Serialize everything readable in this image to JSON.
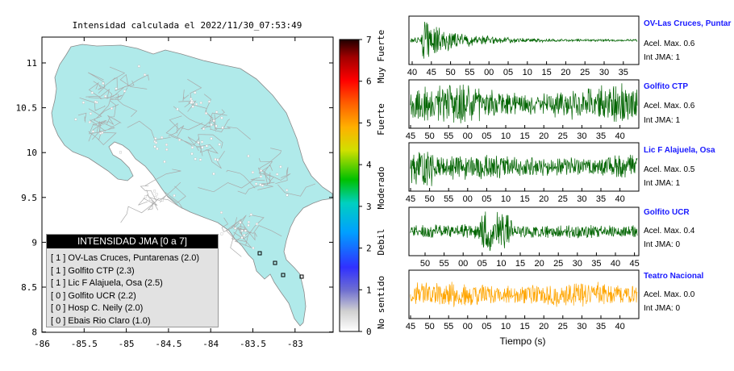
{
  "map": {
    "title": "Intensidad calculada el 2022/11/30_07:53:49",
    "x_ticks": [
      "-86",
      "-85.5",
      "-85",
      "-84.5",
      "-84",
      "-83.5",
      "-83"
    ],
    "y_ticks": [
      "11",
      "10.5",
      "10",
      "9.5",
      "9",
      "8.5",
      "8"
    ],
    "land_color": "#b0eaea",
    "road_color": "#aaaaaa",
    "border_color": "#8a8a8a"
  },
  "colorbar": {
    "ticks": [
      "0",
      "1",
      "2",
      "3",
      "4",
      "5",
      "6",
      "7"
    ],
    "labels": [
      "No sentido",
      "Debil",
      "Moderado",
      "Fuerte",
      "Muy Fuerte"
    ]
  },
  "legend": {
    "title": "INTENSIDAD JMA [0 a 7]",
    "rows": [
      "[ 1 ]  OV-Las Cruces, Puntarenas (2.0)",
      "[ 1 ]  Golfito CTP (2.3)",
      "[ 1 ]  Lic F Alajuela, Osa (2.5)",
      "[ 0 ]  Golfito UCR (2.2)",
      "[ 0 ]  Hosp C. Neily (2.0)",
      "[ 0 ]  Ebais Rio Claro (1.0)"
    ]
  },
  "waveforms": [
    {
      "name": "OV-Las Cruces, Puntar",
      "accel": "Acel. Max. 0.6",
      "intensity": "Int JMA: 1",
      "color": "#006400",
      "ticks": [
        "40",
        "45",
        "50",
        "55",
        "00",
        "05",
        "10",
        "15",
        "20",
        "25",
        "30",
        "35"
      ]
    },
    {
      "name": "Golfito CTP",
      "accel": "Acel. Max. 0.6",
      "intensity": "Int JMA: 1",
      "color": "#006400",
      "ticks": [
        "45",
        "50",
        "55",
        "00",
        "05",
        "10",
        "15",
        "20",
        "25",
        "30",
        "35",
        "40"
      ]
    },
    {
      "name": "Lic F Alajuela, Osa",
      "accel": "Acel. Max. 0.5",
      "intensity": "Int JMA: 1",
      "color": "#006400",
      "ticks": [
        "45",
        "50",
        "55",
        "00",
        "05",
        "10",
        "15",
        "20",
        "25",
        "30",
        "35",
        "40"
      ]
    },
    {
      "name": "Golfito UCR",
      "accel": "Acel. Max. 0.4",
      "intensity": "Int JMA: 0",
      "color": "#006400",
      "ticks": [
        "50",
        "55",
        "00",
        "05",
        "10",
        "15",
        "20",
        "25",
        "30",
        "35",
        "40",
        "45"
      ]
    },
    {
      "name": "Teatro Nacional",
      "accel": "Acel. Max. 0.0",
      "intensity": "Int JMA: 0",
      "color": "#ffa500",
      "ticks": [
        "45",
        "50",
        "55",
        "00",
        "05",
        "10",
        "15",
        "20",
        "25",
        "30",
        "35",
        "40"
      ]
    }
  ],
  "time_label": "Tiempo (s)",
  "chart_data": [
    {
      "type": "heatmap",
      "title": "Intensidad calculada el 2022/11/30_07:53:49",
      "xlabel": "",
      "ylabel": "",
      "xlim": [
        -86,
        -82.5
      ],
      "ylim": [
        8,
        11.3
      ],
      "colorbar_range": [
        0,
        7
      ],
      "colorbar_labels": [
        "No sentido",
        "Debil",
        "Moderado",
        "Fuerte",
        "Muy Fuerte"
      ],
      "stations": [
        {
          "name": "OV-Las Cruces, Puntarenas",
          "jma": 1,
          "value": 2.0
        },
        {
          "name": "Golfito CTP",
          "jma": 1,
          "value": 2.3
        },
        {
          "name": "Lic F Alajuela, Osa",
          "jma": 1,
          "value": 2.5
        },
        {
          "name": "Golfito UCR",
          "jma": 0,
          "value": 2.2
        },
        {
          "name": "Hosp C. Neily",
          "jma": 0,
          "value": 2.0
        },
        {
          "name": "Ebais Rio Claro",
          "jma": 0,
          "value": 1.0
        }
      ]
    },
    {
      "type": "line",
      "xlabel": "Tiempo (s)",
      "series": [
        {
          "name": "OV-Las Cruces, Puntar",
          "accel_max": 0.6,
          "int_jma": 1
        },
        {
          "name": "Golfito CTP",
          "accel_max": 0.6,
          "int_jma": 1
        },
        {
          "name": "Lic F Alajuela, Osa",
          "accel_max": 0.5,
          "int_jma": 1
        },
        {
          "name": "Golfito UCR",
          "accel_max": 0.4,
          "int_jma": 0
        },
        {
          "name": "Teatro Nacional",
          "accel_max": 0.0,
          "int_jma": 0
        }
      ]
    }
  ]
}
